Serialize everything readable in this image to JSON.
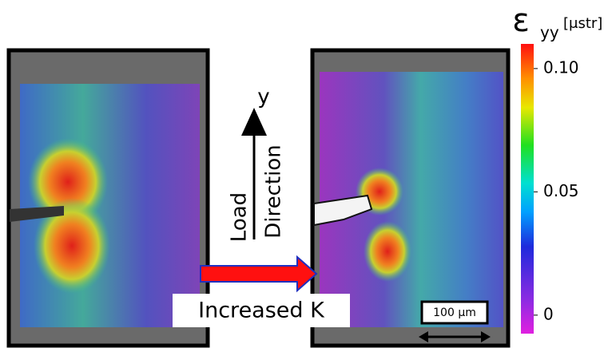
{
  "figure": {
    "colorbar": {
      "symbol": "ε",
      "subscript": "yy",
      "unit": "[μstr]",
      "range": [
        -0.0075,
        0.11
      ],
      "ticks": [
        {
          "value": 0.1,
          "label": "0.10"
        },
        0.05,
        0
      ]
    },
    "axis_label": "y",
    "load_label": "Load",
    "direction_label": "Direction",
    "step_label": "Increased K",
    "scale_bar": "100 μm"
  }
}
